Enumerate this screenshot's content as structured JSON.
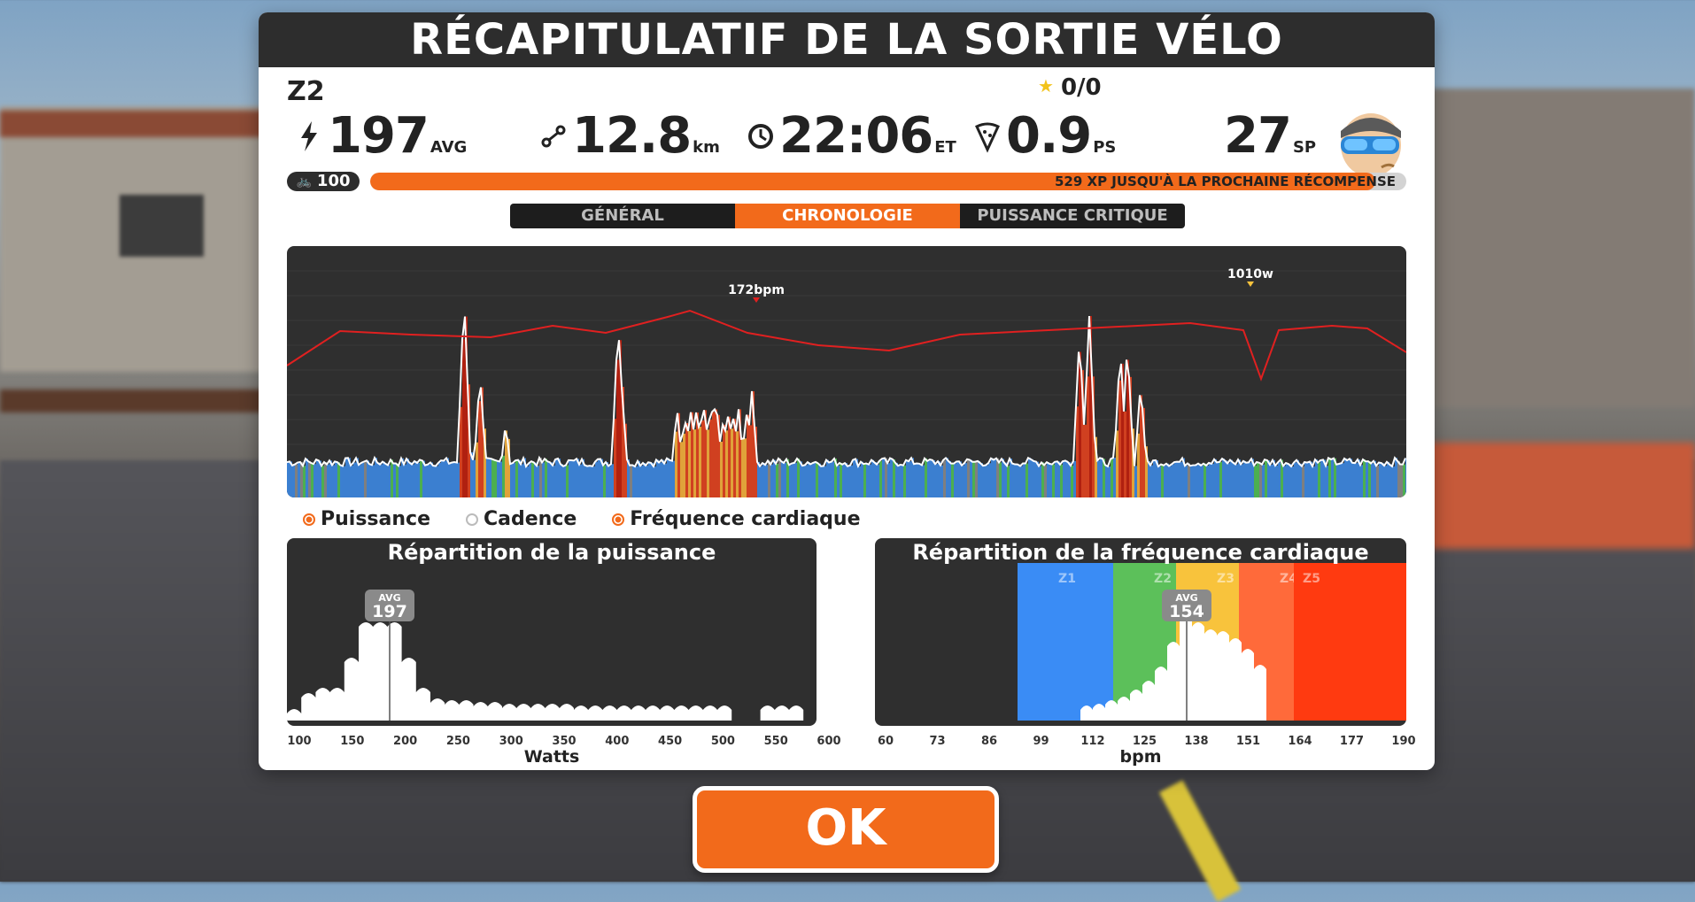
{
  "header": {
    "title": "RÉCAPITULATIF DE LA SORTIE VÉLO"
  },
  "ride": {
    "zone": "Z2",
    "stars": "0/0"
  },
  "stats": {
    "power": {
      "value": "197",
      "unit": "AVG",
      "icon": "lightning-icon"
    },
    "distance": {
      "value": "12.8",
      "unit": "km",
      "icon": "route-icon"
    },
    "time": {
      "value": "22:06",
      "unit": "ET",
      "icon": "clock-icon"
    },
    "calories": {
      "value": "0.9",
      "unit": "PS",
      "icon": "pizza-icon"
    },
    "sprint": {
      "value": "27",
      "unit": "SP"
    }
  },
  "xp": {
    "level": "100",
    "text": "529 XP JUSQU'À LA PROCHAINE RÉCOMPENSE",
    "progress": 0.97
  },
  "tabs": [
    {
      "label": "GÉNÉRAL",
      "active": false
    },
    {
      "label": "CHRONOLOGIE",
      "active": true
    },
    {
      "label": "PUISSANCE CRITIQUE",
      "active": false
    }
  ],
  "timeline": {
    "hr_peak_label": "172bpm",
    "power_peak_label": "1010w",
    "colors": {
      "hr": "#e02020",
      "power_line": "#ffffff",
      "z1": "#7f7f7f",
      "z2": "#3b7fd0",
      "z3": "#4caf50",
      "z4": "#e0a23a",
      "z5": "#d04020",
      "z6": "#b02010"
    }
  },
  "legend": [
    {
      "label": "Puissance",
      "selected": true
    },
    {
      "label": "Cadence",
      "selected": false
    },
    {
      "label": "Fréquence cardiaque",
      "selected": true
    }
  ],
  "power_distribution": {
    "title": "Répartition de la puissance",
    "avg_label": "AVG",
    "avg_value": "197",
    "xlabel": "Watts",
    "ticks": [
      "100",
      "150",
      "200",
      "250",
      "300",
      "350",
      "400",
      "450",
      "500",
      "550",
      "600"
    ]
  },
  "hr_distribution": {
    "title": "Répartition de la fréquence cardiaque",
    "avg_label": "AVG",
    "avg_value": "154",
    "xlabel": "bpm",
    "zones": [
      {
        "name": "Z1",
        "color": "#3a8cf5"
      },
      {
        "name": "Z2",
        "color": "#5cc05a"
      },
      {
        "name": "Z3",
        "color": "#f8c33c"
      },
      {
        "name": "Z4",
        "color": "#ff6a3a"
      },
      {
        "name": "Z5",
        "color": "#ff3a10"
      }
    ],
    "ticks": [
      "60",
      "73",
      "86",
      "99",
      "112",
      "125",
      "138",
      "151",
      "164",
      "177",
      "190"
    ]
  },
  "ok_button": {
    "label": "OK"
  }
}
